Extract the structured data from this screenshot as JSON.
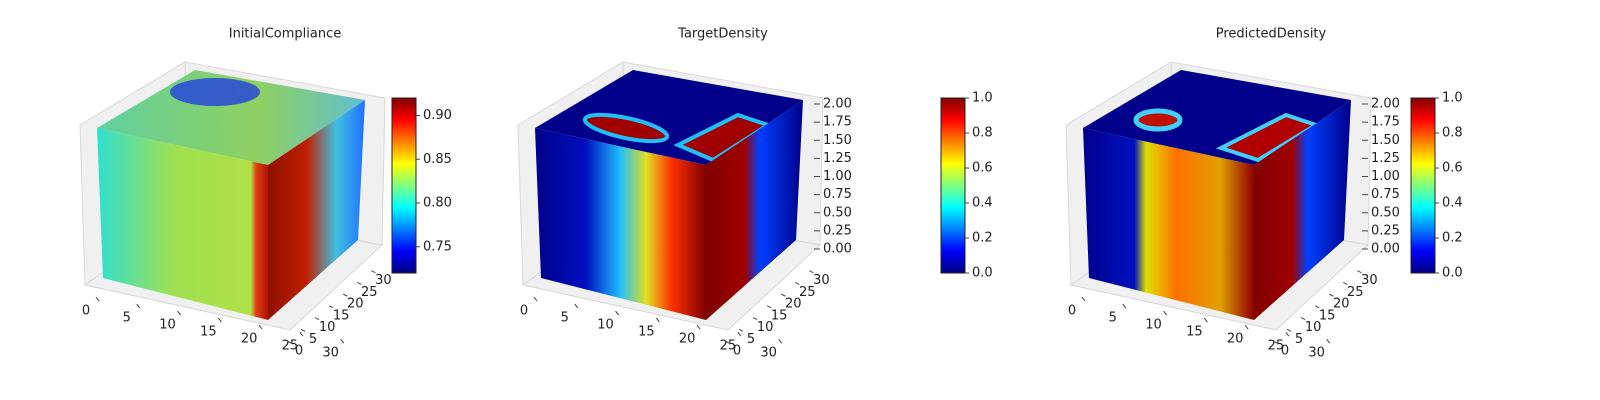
{
  "chart_data": [
    {
      "type": "voxel",
      "title": "InitialCompliance",
      "cmap": "jet",
      "xlim": [
        0,
        32
      ],
      "xticks": [
        0,
        5,
        10,
        15,
        20,
        25,
        30
      ],
      "ylim": [
        0,
        32
      ],
      "yticks": [
        0,
        5,
        10,
        15,
        20,
        25,
        30
      ],
      "clim": [
        0.72,
        0.92
      ],
      "cticks": [
        0.75,
        {
          "value": 0.8,
          "label": "0.80"
        },
        0.85,
        {
          "value": 0.9,
          "label": "0.90"
        }
      ]
    },
    {
      "type": "voxel",
      "title": "TargetDensity",
      "cmap": "jet",
      "xlim": [
        0,
        32
      ],
      "xticks": [
        0,
        5,
        10,
        15,
        20,
        25,
        30
      ],
      "ylim": [
        0,
        32
      ],
      "yticks": [
        0,
        5,
        10,
        15,
        20,
        25,
        30
      ],
      "zlim": [
        0,
        2
      ],
      "zticks": [
        {
          "value": 0,
          "label": "0.00"
        },
        0.25,
        {
          "value": 0.5,
          "label": "0.50"
        },
        0.75,
        {
          "value": 1,
          "label": "1.00"
        },
        1.25,
        {
          "value": 1.5,
          "label": "1.50"
        },
        1.75,
        {
          "value": 2,
          "label": "2.00"
        }
      ],
      "clim": [
        0,
        1
      ],
      "cticks": [
        {
          "value": 0,
          "label": "0.0"
        },
        0.2,
        0.4,
        0.6,
        0.8,
        {
          "value": 1,
          "label": "1.0"
        }
      ]
    },
    {
      "type": "voxel",
      "title": "PredictedDensity",
      "cmap": "jet",
      "xlim": [
        0,
        32
      ],
      "xticks": [
        0,
        5,
        10,
        15,
        20,
        25,
        30
      ],
      "ylim": [
        0,
        32
      ],
      "yticks": [
        0,
        5,
        10,
        15,
        20,
        25,
        30
      ],
      "zlim": [
        0,
        2
      ],
      "zticks": [
        {
          "value": 0,
          "label": "0.00"
        },
        0.25,
        {
          "value": 0.5,
          "label": "0.50"
        },
        0.75,
        {
          "value": 1,
          "label": "1.00"
        },
        1.25,
        {
          "value": 1.5,
          "label": "1.50"
        },
        1.75,
        {
          "value": 2,
          "label": "2.00"
        }
      ],
      "clim": [
        0,
        1
      ],
      "cticks": [
        {
          "value": 0,
          "label": "0.0"
        },
        0.2,
        0.4,
        0.6,
        0.8,
        {
          "value": 1,
          "label": "1.0"
        }
      ]
    }
  ]
}
